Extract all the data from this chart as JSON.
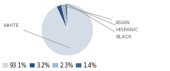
{
  "labels": [
    "WHITE",
    "ASIAN",
    "HISPANIC",
    "BLACK"
  ],
  "values": [
    93.1,
    3.2,
    2.3,
    1.4
  ],
  "colors": [
    "#d4dce8",
    "#2e5080",
    "#a8b8cc",
    "#3d6b8a"
  ],
  "legend_labels": [
    "93.1%",
    "3.2%",
    "2.3%",
    "1.4%"
  ],
  "startangle": 90,
  "figsize": [
    2.4,
    1.0
  ],
  "dpi": 100,
  "label_fontsize": 5.0,
  "legend_fontsize": 5.5,
  "label_color": "#666666",
  "line_color": "#999999"
}
